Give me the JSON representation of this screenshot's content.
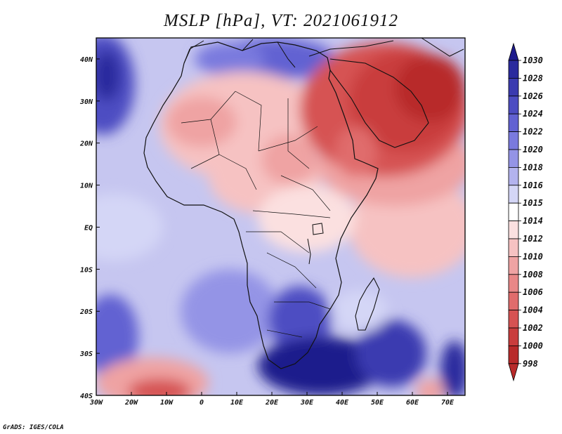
{
  "title": "MSLP [hPa], VT: 2021061912",
  "credit": "GrADS: IGES/COLA",
  "map": {
    "lon_range": [
      -30,
      75
    ],
    "lat_range": [
      -40,
      45
    ],
    "x_ticks": [
      {
        "lon": -30,
        "label": "30W"
      },
      {
        "lon": -20,
        "label": "20W"
      },
      {
        "lon": -10,
        "label": "10W"
      },
      {
        "lon": 0,
        "label": "0"
      },
      {
        "lon": 10,
        "label": "10E"
      },
      {
        "lon": 20,
        "label": "20E"
      },
      {
        "lon": 30,
        "label": "30E"
      },
      {
        "lon": 40,
        "label": "40E"
      },
      {
        "lon": 50,
        "label": "50E"
      },
      {
        "lon": 60,
        "label": "60E"
      },
      {
        "lon": 70,
        "label": "70E"
      }
    ],
    "y_ticks": [
      {
        "lat": 40,
        "label": "40N"
      },
      {
        "lat": 30,
        "label": "30N"
      },
      {
        "lat": 20,
        "label": "20N"
      },
      {
        "lat": 10,
        "label": "10N"
      },
      {
        "lat": 0,
        "label": "EQ"
      },
      {
        "lat": -10,
        "label": "10S"
      },
      {
        "lat": -20,
        "label": "20S"
      },
      {
        "lat": -30,
        "label": "30S"
      },
      {
        "lat": -40,
        "label": "40S"
      }
    ]
  },
  "colorbar": {
    "levels": [
      {
        "label": "1030",
        "color": "#1e1b8c"
      },
      {
        "label": "1028",
        "color": "#2a2a9e"
      },
      {
        "label": "1026",
        "color": "#3b3bb0"
      },
      {
        "label": "1024",
        "color": "#4d4dc2"
      },
      {
        "label": "1022",
        "color": "#6262d2"
      },
      {
        "label": "1020",
        "color": "#7a7ade"
      },
      {
        "label": "1018",
        "color": "#9494e6"
      },
      {
        "label": "1016",
        "color": "#b3b3ee"
      },
      {
        "label": "1015",
        "color": "#d4d6f6"
      },
      {
        "label": "1014",
        "color": "#ffffff"
      },
      {
        "label": "1012",
        "color": "#fbe0e0"
      },
      {
        "label": "1010",
        "color": "#f6c2c2"
      },
      {
        "label": "1008",
        "color": "#efa3a3"
      },
      {
        "label": "1006",
        "color": "#e88787"
      },
      {
        "label": "1004",
        "color": "#e06c6c"
      },
      {
        "label": "1002",
        "color": "#d65252"
      },
      {
        "label": "1000",
        "color": "#c93d3d"
      },
      {
        "label": "998",
        "color": "#b82a2a"
      }
    ]
  },
  "field": {
    "background": "#c6c6f0",
    "blobs": [
      {
        "lon": -28,
        "lat": 34,
        "rx": 9,
        "ry": 12,
        "color": "#4d4dc2"
      },
      {
        "lon": -27,
        "lat": 36,
        "rx": 4,
        "ry": 6,
        "color": "#2a2a9e"
      },
      {
        "lon": -25,
        "lat": 0,
        "rx": 14,
        "ry": 8,
        "color": "#d4d6f6"
      },
      {
        "lon": -26,
        "lat": -26,
        "rx": 8,
        "ry": 10,
        "color": "#6262d2"
      },
      {
        "lon": -14,
        "lat": -37,
        "rx": 16,
        "ry": 6,
        "color": "#efa3a3"
      },
      {
        "lon": -12,
        "lat": -39,
        "rx": 9,
        "ry": 3,
        "color": "#d65252"
      },
      {
        "lon": 8,
        "lat": -20,
        "rx": 14,
        "ry": 10,
        "color": "#9494e6"
      },
      {
        "lon": 20,
        "lat": 40,
        "rx": 18,
        "ry": 5,
        "color": "#6262d2"
      },
      {
        "lon": 8,
        "lat": 40,
        "rx": 10,
        "ry": 4,
        "color": "#7a7ade"
      },
      {
        "lon": 12,
        "lat": 24,
        "rx": 24,
        "ry": 13,
        "color": "#f6c2c2"
      },
      {
        "lon": 0,
        "lat": 25,
        "rx": 10,
        "ry": 6,
        "color": "#efa3a3"
      },
      {
        "lon": 18,
        "lat": 12,
        "rx": 16,
        "ry": 9,
        "color": "#f6c2c2"
      },
      {
        "lon": 25,
        "lat": 16,
        "rx": 8,
        "ry": 6,
        "color": "#efa3a3"
      },
      {
        "lon": 60,
        "lat": 0,
        "rx": 18,
        "ry": 12,
        "color": "#f6c2c2"
      },
      {
        "lon": 30,
        "lat": 2,
        "rx": 14,
        "ry": 8,
        "color": "#fbe0e0"
      },
      {
        "lon": 55,
        "lat": 15,
        "rx": 22,
        "ry": 10,
        "color": "#efa3a3"
      },
      {
        "lon": 52,
        "lat": 28,
        "rx": 24,
        "ry": 16,
        "color": "#d65252"
      },
      {
        "lon": 58,
        "lat": 30,
        "rx": 16,
        "ry": 12,
        "color": "#c93d3d"
      },
      {
        "lon": 65,
        "lat": 33,
        "rx": 10,
        "ry": 8,
        "color": "#b82a2a"
      },
      {
        "lon": 44,
        "lat": 18,
        "rx": 6,
        "ry": 6,
        "color": "#e06c6c"
      },
      {
        "lon": 28,
        "lat": -22,
        "rx": 9,
        "ry": 8,
        "color": "#4d4dc2"
      },
      {
        "lon": 34,
        "lat": -33,
        "rx": 18,
        "ry": 7,
        "color": "#1e1b8c"
      },
      {
        "lon": 54,
        "lat": -30,
        "rx": 10,
        "ry": 8,
        "color": "#3b3bb0"
      },
      {
        "lon": 45,
        "lat": -20,
        "rx": 8,
        "ry": 5,
        "color": "#d4d6f6"
      },
      {
        "lon": 72,
        "lat": -34,
        "rx": 4,
        "ry": 7,
        "color": "#2a2a9e"
      },
      {
        "lon": 65,
        "lat": -39,
        "rx": 4,
        "ry": 3,
        "color": "#efa3a3"
      }
    ]
  }
}
